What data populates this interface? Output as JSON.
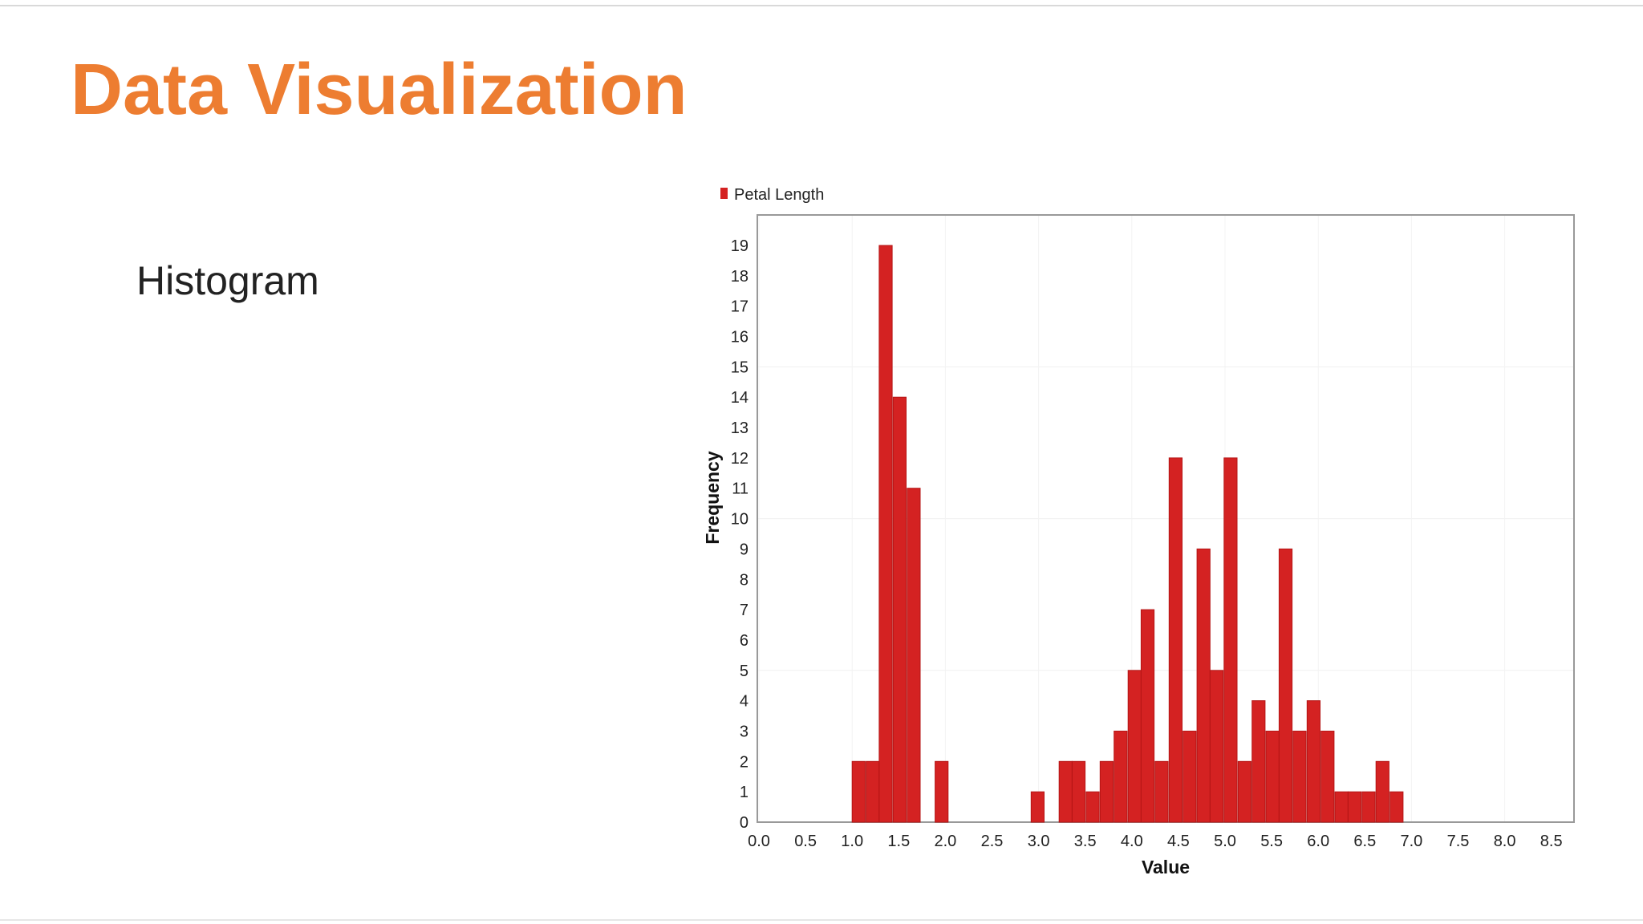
{
  "slide": {
    "title": "Data Visualization",
    "bullet": "Histogram"
  },
  "colors": {
    "title": "#ed7d31",
    "bar": "#d42222",
    "bar_edge": "#b51515",
    "frame": "#999999"
  },
  "chart_data": {
    "type": "bar",
    "title": "",
    "xlabel": "Value",
    "ylabel": "Frequency",
    "legend": {
      "entries": [
        "Petal Length"
      ],
      "placement": "top-left"
    },
    "grid": true,
    "xlim": [
      0.0,
      8.7
    ],
    "ylim": [
      0,
      19
    ],
    "x_ticks": [
      0.0,
      0.5,
      1.0,
      1.5,
      2.0,
      2.5,
      3.0,
      3.5,
      4.0,
      4.5,
      5.0,
      5.5,
      6.0,
      6.5,
      7.0,
      7.5,
      8.0,
      8.5
    ],
    "x_tick_labels": [
      "0.0",
      "0.5",
      "1.0",
      "1.5",
      "2.0",
      "2.5",
      "3.0",
      "3.5",
      "4.0",
      "4.5",
      "5.0",
      "5.5",
      "6.0",
      "6.5",
      "7.0",
      "7.5",
      "8.0",
      "8.5"
    ],
    "y_ticks": [
      0,
      1,
      2,
      3,
      4,
      5,
      6,
      7,
      8,
      9,
      10,
      11,
      12,
      13,
      14,
      15,
      16,
      17,
      18,
      19
    ],
    "bin_width": 0.148,
    "series": [
      {
        "name": "Petal Length",
        "bins": [
          {
            "x": 1.0,
            "value": 2
          },
          {
            "x": 1.15,
            "value": 2
          },
          {
            "x": 1.29,
            "value": 19
          },
          {
            "x": 1.44,
            "value": 14
          },
          {
            "x": 1.59,
            "value": 11
          },
          {
            "x": 1.89,
            "value": 2
          },
          {
            "x": 2.92,
            "value": 1
          },
          {
            "x": 3.22,
            "value": 2
          },
          {
            "x": 3.36,
            "value": 2
          },
          {
            "x": 3.51,
            "value": 1
          },
          {
            "x": 3.66,
            "value": 2
          },
          {
            "x": 3.81,
            "value": 3
          },
          {
            "x": 3.96,
            "value": 5
          },
          {
            "x": 4.1,
            "value": 7
          },
          {
            "x": 4.25,
            "value": 2
          },
          {
            "x": 4.4,
            "value": 12
          },
          {
            "x": 4.55,
            "value": 3
          },
          {
            "x": 4.7,
            "value": 9
          },
          {
            "x": 4.84,
            "value": 5
          },
          {
            "x": 4.99,
            "value": 12
          },
          {
            "x": 5.14,
            "value": 2
          },
          {
            "x": 5.29,
            "value": 4
          },
          {
            "x": 5.44,
            "value": 3
          },
          {
            "x": 5.58,
            "value": 9
          },
          {
            "x": 5.73,
            "value": 3
          },
          {
            "x": 5.88,
            "value": 4
          },
          {
            "x": 6.03,
            "value": 3
          },
          {
            "x": 6.18,
            "value": 1
          },
          {
            "x": 6.32,
            "value": 1
          },
          {
            "x": 6.47,
            "value": 1
          },
          {
            "x": 6.62,
            "value": 2
          },
          {
            "x": 6.77,
            "value": 1
          }
        ]
      }
    ]
  }
}
